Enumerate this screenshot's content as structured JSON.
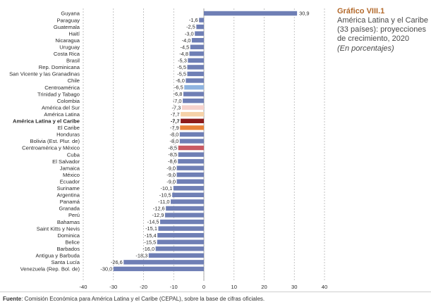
{
  "panel": {
    "title": "Gráfico VIII.1",
    "description": "América Latina y el Caribe (33 países): proyecciones de crecimiento, 2020",
    "units": "(En porcentajes)"
  },
  "source": {
    "label": "Fuente",
    "text": ": Comisión Económica para América Latina y el Caribe (CEPAL), sobre la base de cifras oficiales."
  },
  "colors": {
    "default": "#6f7fb5",
    "centroamerica": "#8fb4e0",
    "america_del_sur": "#f6d2cc",
    "america_latina": "#f6d2a8",
    "america_latina_y_el_caribe": "#8c1b1b",
    "el_caribe": "#e8823a",
    "centroamerica_y_mexico": "#c95a63"
  },
  "chart_data": {
    "type": "bar",
    "orientation": "horizontal",
    "xlim": [
      -40,
      40
    ],
    "xticks": [
      -40,
      -30,
      -20,
      -10,
      0,
      10,
      20,
      30,
      40
    ],
    "grid": "vertical-dashed",
    "categories": [
      "Guyana",
      "Paraguay",
      "Guatemala",
      "Haití",
      "Nicaragua",
      "Uruguay",
      "Costa Rica",
      "Brasil",
      "Rep. Dominicana",
      "San Vicente y las Granadinas",
      "Chile",
      "Centroamérica",
      "Trinidad y Tabago",
      "Colombia",
      "América del Sur",
      "América Latina",
      "América Latina y el Caribe",
      "El Caribe",
      "Honduras",
      "Bolivia (Est. Plur. de)",
      "Centroamérica y México",
      "Cuba",
      "El Salvador",
      "Jamaica",
      "México",
      "Ecuador",
      "Suriname",
      "Argentina",
      "Panamá",
      "Granada",
      "Perú",
      "Bahamas",
      "Saint Kitts y Nevis",
      "Dominica",
      "Belice",
      "Barbados",
      "Antigua y Barbuda",
      "Santa Lucía",
      "Venezuela (Rep. Bol. de)"
    ],
    "values": [
      30.9,
      -1.6,
      -2.5,
      -3.0,
      -4.0,
      -4.5,
      -4.8,
      -5.3,
      -5.5,
      -5.5,
      -6.0,
      -6.5,
      -6.8,
      -7.0,
      -7.3,
      -7.7,
      -7.7,
      -7.9,
      -8.0,
      -8.0,
      -8.5,
      -8.5,
      -8.6,
      -9.0,
      -9.0,
      -9.0,
      -10.1,
      -10.5,
      -11.0,
      -12.6,
      -12.9,
      -14.5,
      -15.1,
      -15.4,
      -15.5,
      -16.0,
      -18.3,
      -26.6,
      -30.0
    ],
    "value_labels": [
      "30,9",
      "-1,6",
      "-2,5",
      "-3,0",
      "-4,0",
      "-4,5",
      "-4,8",
      "-5,3",
      "-5,5",
      "-5,5",
      "-6,0",
      "-6,5",
      "-6,8",
      "-7,0",
      "-7,3",
      "-7,7",
      "-7,7",
      "-7,9",
      "-8,0",
      "-8,0",
      "-8,5",
      "-8,5",
      "-8,6",
      "-9,0",
      "-9,0",
      "-9,0",
      "-10,1",
      "-10,5",
      "-11,0",
      "-12,6",
      "-12,9",
      "-14,5",
      "-15,1",
      "-15,4",
      "-15,5",
      "-16,0",
      "-18,3",
      "-26,6",
      "-30,0"
    ],
    "bar_color_keys": [
      "default",
      "default",
      "default",
      "default",
      "default",
      "default",
      "default",
      "default",
      "default",
      "default",
      "default",
      "centroamerica",
      "default",
      "default",
      "america_del_sur",
      "america_latina",
      "america_latina_y_el_caribe",
      "el_caribe",
      "default",
      "default",
      "centroamerica_y_mexico",
      "default",
      "default",
      "default",
      "default",
      "default",
      "default",
      "default",
      "default",
      "default",
      "default",
      "default",
      "default",
      "default",
      "default",
      "default",
      "default",
      "default",
      "default"
    ],
    "bold_categories": [
      "América Latina y el Caribe"
    ]
  }
}
